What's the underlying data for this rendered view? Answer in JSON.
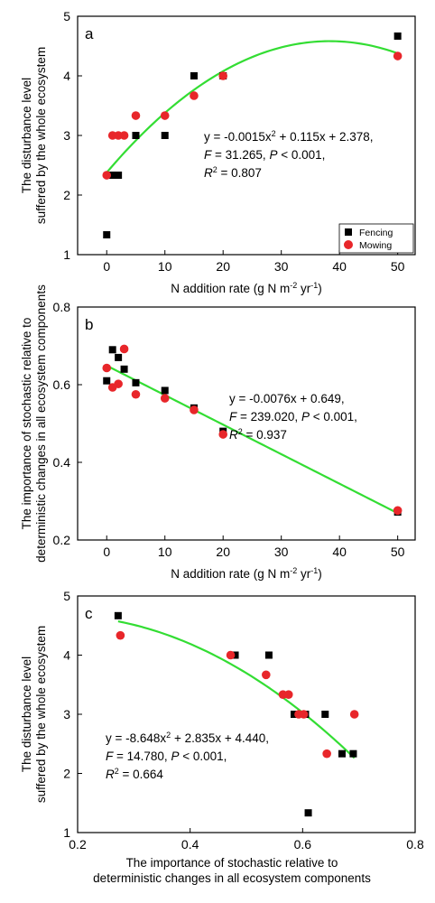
{
  "chart_data": [
    {
      "type": "scatter",
      "panel_label": "a",
      "xlabel": "N addition rate (g N m",
      "xlabel_sup1": "-2",
      "xlabel_mid": " yr",
      "xlabel_sup2": "-1",
      "xlabel_end": ")",
      "ylabel_lines": [
        "The disturbance level",
        "suffered by the whole ecosystem"
      ],
      "xlim": [
        -5,
        53
      ],
      "ylim": [
        1,
        5
      ],
      "xticks": [
        0,
        10,
        20,
        30,
        40,
        50
      ],
      "yticks": [
        1,
        2,
        3,
        4,
        5
      ],
      "grid": false,
      "legend_position": "bottom-right",
      "legend": [
        {
          "label": "Fencing",
          "marker": "square",
          "color": "#000000"
        },
        {
          "label": "Mowing",
          "marker": "circle",
          "color": "#e8262a"
        }
      ],
      "series": [
        {
          "name": "Fencing",
          "marker": "square",
          "color": "#000000",
          "points": [
            [
              0,
              1.333
            ],
            [
              1,
              2.333
            ],
            [
              2,
              2.333
            ],
            [
              5,
              3.0
            ],
            [
              10,
              3.0
            ],
            [
              15,
              4.0
            ],
            [
              20,
              4.0
            ],
            [
              50,
              4.667
            ]
          ]
        },
        {
          "name": "Mowing",
          "marker": "circle",
          "color": "#e8262a",
          "points": [
            [
              0,
              2.333
            ],
            [
              1,
              3.0
            ],
            [
              2,
              3.0
            ],
            [
              3,
              3.0
            ],
            [
              5,
              3.333
            ],
            [
              10,
              3.333
            ],
            [
              15,
              3.667
            ],
            [
              20,
              4.0
            ],
            [
              50,
              4.333
            ]
          ]
        }
      ],
      "fit": {
        "kind": "quadratic",
        "coef": [
          -0.0015,
          0.115,
          2.378
        ],
        "x_range": [
          0,
          50
        ],
        "color": "#33dd33"
      },
      "equation": {
        "line1_pre": "y = -0.0015x",
        "line1_sup": "2",
        "line1_post": " + 0.115x + 2.378,",
        "line2_f": "F",
        "line2_a": " = 31.265, ",
        "line2_p": "P",
        "line2_b": " < 0.001,",
        "line3_r": "R",
        "line3_sup": "2",
        "line3_post": " = 0.807"
      }
    },
    {
      "type": "scatter",
      "panel_label": "b",
      "xlabel": "N addition rate (g N m",
      "xlabel_sup1": "-2",
      "xlabel_mid": " yr",
      "xlabel_sup2": "-1",
      "xlabel_end": ")",
      "ylabel_lines": [
        "The importance of stochastic relative to",
        "deterministic changes in all ecosystem components"
      ],
      "xlim": [
        -5,
        53
      ],
      "ylim": [
        0.2,
        0.8
      ],
      "xticks": [
        0,
        10,
        20,
        30,
        40,
        50
      ],
      "yticks": [
        0.2,
        0.4,
        0.6,
        0.8
      ],
      "grid": false,
      "series": [
        {
          "name": "Fencing",
          "marker": "square",
          "color": "#000000",
          "points": [
            [
              0,
              0.61
            ],
            [
              1,
              0.69
            ],
            [
              2,
              0.67
            ],
            [
              3,
              0.64
            ],
            [
              5,
              0.605
            ],
            [
              10,
              0.585
            ],
            [
              15,
              0.54
            ],
            [
              20,
              0.48
            ],
            [
              50,
              0.272
            ]
          ]
        },
        {
          "name": "Mowing",
          "marker": "circle",
          "color": "#e8262a",
          "points": [
            [
              0,
              0.643
            ],
            [
              1,
              0.593
            ],
            [
              2,
              0.602
            ],
            [
              3,
              0.692
            ],
            [
              5,
              0.575
            ],
            [
              10,
              0.565
            ],
            [
              15,
              0.535
            ],
            [
              20,
              0.472
            ],
            [
              50,
              0.276
            ]
          ]
        }
      ],
      "fit": {
        "kind": "linear",
        "coef": [
          0,
          -0.0076,
          0.649
        ],
        "x_range": [
          0,
          50
        ],
        "color": "#33dd33"
      },
      "equation": {
        "line1_pre": "y = -0.0076x + 0.649,",
        "line1_sup": "",
        "line1_post": "",
        "line2_f": "F",
        "line2_a": " = 239.020, ",
        "line2_p": "P",
        "line2_b": " < 0.001,",
        "line3_r": "R",
        "line3_sup": "2",
        "line3_post": " = 0.937"
      }
    },
    {
      "type": "scatter",
      "panel_label": "c",
      "xlabel_lines": [
        "The importance of stochastic relative to",
        "deterministic changes in all ecosystem components"
      ],
      "ylabel_lines": [
        "The disturbance level",
        "suffered by the whole ecosystem"
      ],
      "xlim": [
        0.2,
        0.8
      ],
      "ylim": [
        1,
        5
      ],
      "xticks": [
        0.2,
        0.4,
        0.6,
        0.8
      ],
      "yticks": [
        1,
        2,
        3,
        4,
        5
      ],
      "grid": false,
      "series": [
        {
          "name": "Fencing",
          "marker": "square",
          "color": "#000000",
          "points": [
            [
              0.272,
              4.667
            ],
            [
              0.48,
              4.0
            ],
            [
              0.54,
              4.0
            ],
            [
              0.585,
              3.0
            ],
            [
              0.605,
              3.0
            ],
            [
              0.64,
              3.0
            ],
            [
              0.67,
              2.333
            ],
            [
              0.69,
              2.333
            ],
            [
              0.61,
              1.333
            ]
          ]
        },
        {
          "name": "Mowing",
          "marker": "circle",
          "color": "#e8262a",
          "points": [
            [
              0.276,
              4.333
            ],
            [
              0.472,
              4.0
            ],
            [
              0.535,
              3.667
            ],
            [
              0.565,
              3.333
            ],
            [
              0.575,
              3.333
            ],
            [
              0.593,
              3.0
            ],
            [
              0.602,
              3.0
            ],
            [
              0.692,
              3.0
            ],
            [
              0.643,
              2.333
            ]
          ]
        }
      ],
      "fit": {
        "kind": "quadratic",
        "coef": [
          -8.648,
          2.835,
          4.44
        ],
        "x_range": [
          0.272,
          0.692
        ],
        "color": "#33dd33"
      },
      "equation": {
        "line1_pre": "y = -8.648x",
        "line1_sup": "2",
        "line1_post": " + 2.835x + 4.440,",
        "line2_f": "F",
        "line2_a": " = 14.780, ",
        "line2_p": "P",
        "line2_b": " < 0.001,",
        "line3_r": "R",
        "line3_sup": "2",
        "line3_post": " = 0.664"
      }
    }
  ]
}
